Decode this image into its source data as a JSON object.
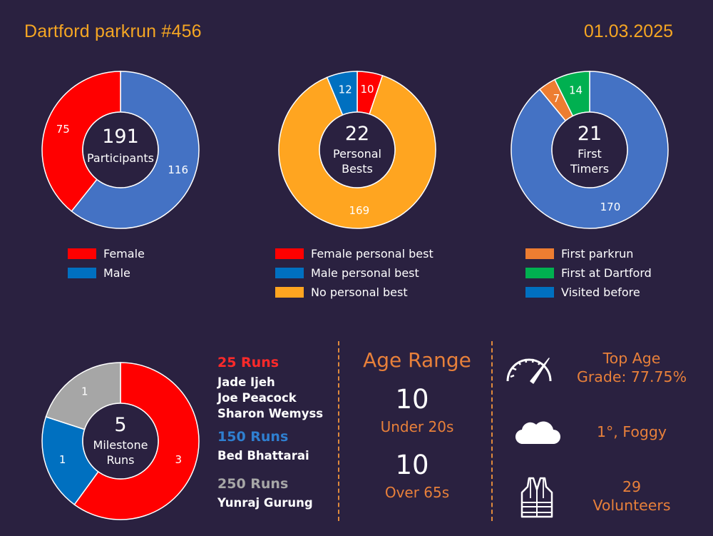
{
  "header": {
    "title": "Dartford parkrun #456",
    "date": "01.03.2025"
  },
  "chart_data": [
    {
      "type": "pie",
      "donut": true,
      "center_value": "191",
      "center_label": "Participants",
      "slices": [
        {
          "name": "Male",
          "value": 116,
          "color": "#4472c4"
        },
        {
          "name": "Female",
          "value": 75,
          "color": "#ff0000"
        }
      ],
      "legend": [
        {
          "name": "Female",
          "color": "#ff0000"
        },
        {
          "name": "Male",
          "color": "#0070c0"
        }
      ]
    },
    {
      "type": "pie",
      "donut": true,
      "center_value": "22",
      "center_label": [
        "Personal",
        "Bests"
      ],
      "slices": [
        {
          "name": "Female personal best",
          "value": 10,
          "color": "#ff0000"
        },
        {
          "name": "No personal best",
          "value": 169,
          "color": "#ffa520"
        },
        {
          "name": "Male personal best",
          "value": 12,
          "color": "#0070c0"
        }
      ],
      "legend": [
        {
          "name": "Female personal best",
          "color": "#ff0000"
        },
        {
          "name": "Male personal best",
          "color": "#0070c0"
        },
        {
          "name": "No personal best",
          "color": "#ffa520"
        }
      ]
    },
    {
      "type": "pie",
      "donut": true,
      "center_value": "21",
      "center_label": [
        "First",
        "Timers"
      ],
      "slices": [
        {
          "name": "Visited before",
          "value": 170,
          "color": "#4472c4"
        },
        {
          "name": "First parkrun",
          "value": 7,
          "color": "#ed7d31"
        },
        {
          "name": "First at Dartford",
          "value": 14,
          "color": "#00b050"
        }
      ],
      "legend": [
        {
          "name": "First parkrun",
          "color": "#ed7d31"
        },
        {
          "name": "First at Dartford",
          "color": "#00b050"
        },
        {
          "name": "Visited before",
          "color": "#0070c0"
        }
      ]
    },
    {
      "type": "pie",
      "donut": true,
      "center_value": "5",
      "center_label": [
        "Milestone",
        "Runs"
      ],
      "slices": [
        {
          "name": "25 Runs",
          "value": 3,
          "color": "#ff0000"
        },
        {
          "name": "150 Runs",
          "value": 1,
          "color": "#0070c0"
        },
        {
          "name": "250 Runs",
          "value": 1,
          "color": "#a6a6a6"
        }
      ]
    }
  ],
  "milestones": [
    {
      "label": "25 Runs",
      "color": "#ff2a2a",
      "names": [
        "Jade Ijeh",
        "Joe Peacock",
        "Sharon Wemyss"
      ]
    },
    {
      "label": "150 Runs",
      "color": "#2f7fd0",
      "names": [
        "Bed Bhattarai"
      ]
    },
    {
      "label": "250 Runs",
      "color": "#a6a6a6",
      "names": [
        "Yunraj Gurung"
      ]
    }
  ],
  "age_range": {
    "title": "Age Range",
    "under": {
      "value": "10",
      "label": "Under 20s"
    },
    "over": {
      "value": "10",
      "label": "Over 65s"
    }
  },
  "stats": {
    "age_grade": {
      "line1": "Top Age",
      "line2": "Grade:  77.75%",
      "icon": "speedometer-icon"
    },
    "weather": {
      "text": "1°, Foggy",
      "icon": "cloud-icon"
    },
    "volunteers": {
      "line1": "29",
      "line2": "Volunteers",
      "icon": "hi-vis-vest-icon"
    }
  }
}
